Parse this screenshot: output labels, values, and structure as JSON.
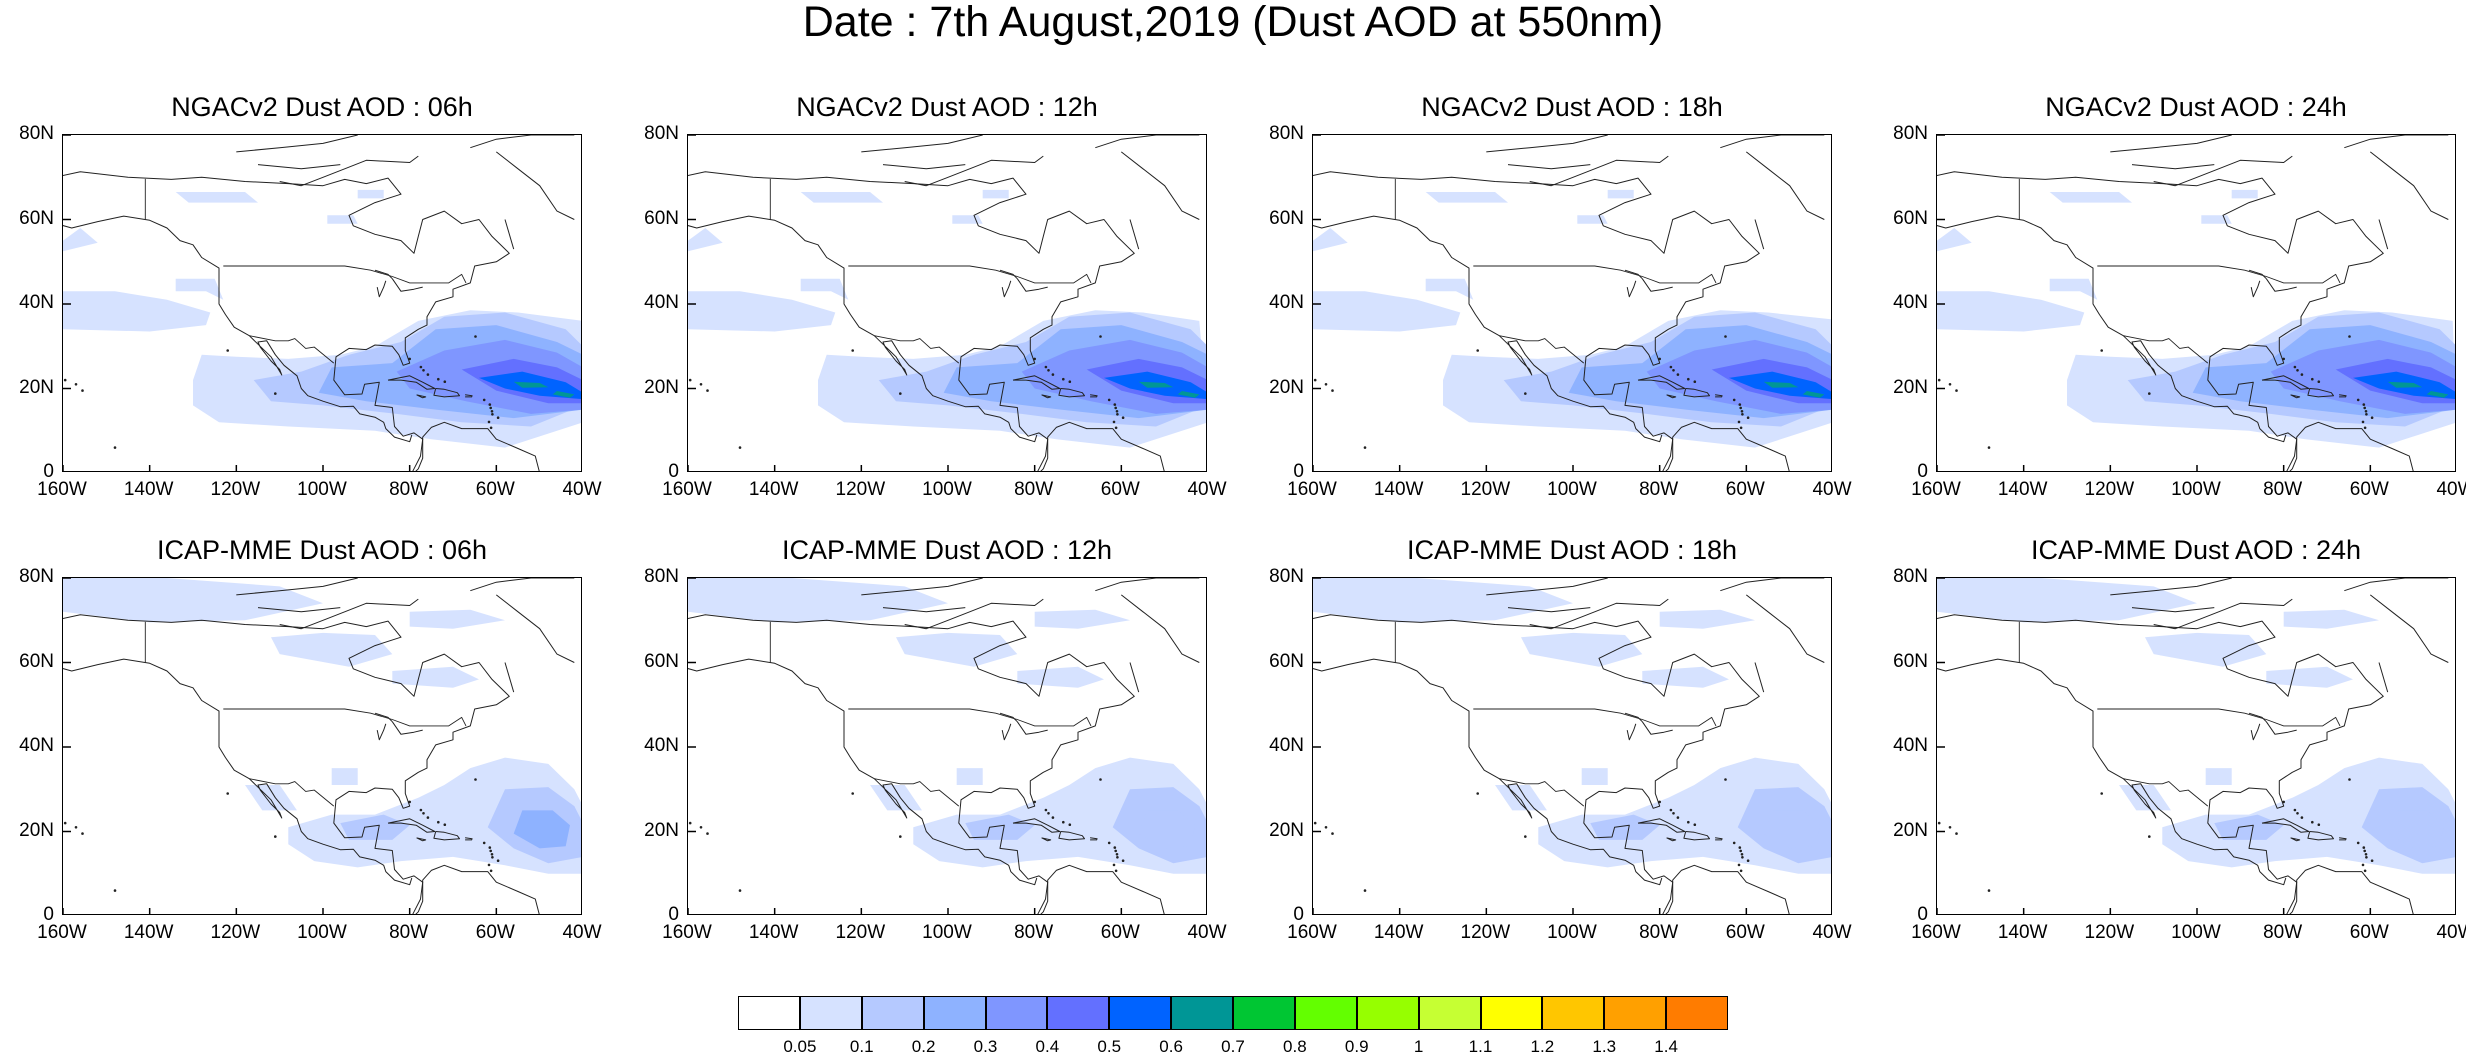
{
  "title": "Date : 7th August,2019 (Dust AOD at 550nm)",
  "panels": [
    {
      "title": "NGACv2 Dust AOD : 06h",
      "model": "ngac",
      "hour": "06h"
    },
    {
      "title": "NGACv2 Dust AOD : 12h",
      "model": "ngac",
      "hour": "12h"
    },
    {
      "title": "NGACv2 Dust AOD : 18h",
      "model": "ngac",
      "hour": "18h"
    },
    {
      "title": "NGACv2 Dust AOD : 24h",
      "model": "ngac",
      "hour": "24h"
    },
    {
      "title": "ICAP-MME Dust AOD : 06h",
      "model": "icap",
      "hour": "06h"
    },
    {
      "title": "ICAP-MME Dust AOD : 12h",
      "model": "icap",
      "hour": "12h"
    },
    {
      "title": "ICAP-MME Dust AOD : 18h",
      "model": "icap",
      "hour": "18h"
    },
    {
      "title": "ICAP-MME Dust AOD : 24h",
      "model": "icap",
      "hour": "24h"
    }
  ],
  "axes": {
    "lat_ticks": [
      "80N",
      "60N",
      "40N",
      "20N",
      "0"
    ],
    "lon_ticks": [
      "160W",
      "140W",
      "120W",
      "100W",
      "80W",
      "60W",
      "40W"
    ],
    "lat_range": [
      0,
      80
    ],
    "lon_range": [
      -160,
      -40
    ]
  },
  "colorbar": {
    "labels": [
      "0.05",
      "0.1",
      "0.2",
      "0.3",
      "0.4",
      "0.5",
      "0.6",
      "0.7",
      "0.8",
      "0.9",
      "1",
      "1.1",
      "1.2",
      "1.3",
      "1.4"
    ],
    "colors": [
      "#ffffff",
      "#d6e2ff",
      "#b5c9ff",
      "#8eb2ff",
      "#7f96ff",
      "#6370ff",
      "#0063ff",
      "#009696",
      "#00c633",
      "#63ff00",
      "#96ff00",
      "#c6ff33",
      "#ffff00",
      "#ffc600",
      "#ffa000",
      "#ff7c00",
      "#ff1900"
    ]
  },
  "chart_data": {
    "type": "heatmap",
    "title": "Date : 7th August,2019 (Dust AOD at 550nm)",
    "variable": "Dust AOD at 550nm",
    "region": {
      "lon": [
        -160,
        -40
      ],
      "lat": [
        0,
        80
      ]
    },
    "fields": [
      {
        "panel": "NGACv2 Dust AOD : 06h",
        "max_aod_approx": 0.65,
        "max_location": {
          "lon": -50,
          "lat": 20
        }
      },
      {
        "panel": "NGACv2 Dust AOD : 12h",
        "max_aod_approx": 0.65,
        "max_location": {
          "lon": -55,
          "lat": 21
        }
      },
      {
        "panel": "NGACv2 Dust AOD : 18h",
        "max_aod_approx": 0.65,
        "max_location": {
          "lon": -50,
          "lat": 21
        }
      },
      {
        "panel": "NGACv2 Dust AOD : 24h",
        "max_aod_approx": 0.65,
        "max_location": {
          "lon": -52,
          "lat": 20
        }
      },
      {
        "panel": "ICAP-MME Dust AOD : 06h",
        "max_aod_approx": 0.35,
        "max_location": {
          "lon": -48,
          "lat": 20
        }
      },
      {
        "panel": "ICAP-MME Dust AOD : 12h",
        "max_aod_approx": 0.3,
        "max_location": {
          "lon": -48,
          "lat": 20
        }
      },
      {
        "panel": "ICAP-MME Dust AOD : 18h",
        "max_aod_approx": 0.3,
        "max_location": {
          "lon": -48,
          "lat": 20
        }
      },
      {
        "panel": "ICAP-MME Dust AOD : 24h",
        "max_aod_approx": 0.3,
        "max_location": {
          "lon": -48,
          "lat": 20
        }
      }
    ]
  }
}
